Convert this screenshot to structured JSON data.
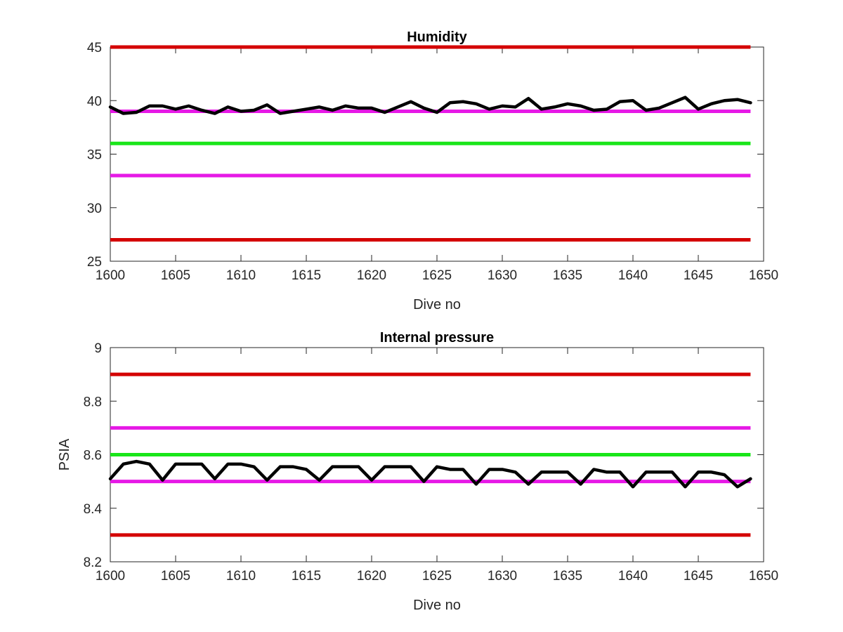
{
  "chart_data": [
    {
      "type": "line",
      "title": "Humidity",
      "xlabel": "Dive no",
      "ylabel": "",
      "xlim": [
        1600,
        1650
      ],
      "ylim": [
        25,
        45
      ],
      "xticks": [
        1600,
        1605,
        1610,
        1615,
        1620,
        1625,
        1630,
        1635,
        1640,
        1645,
        1650
      ],
      "yticks": [
        25,
        30,
        35,
        40,
        45
      ],
      "x_tick_labels": [
        "1600",
        "1605",
        "1610",
        "1615",
        "1620",
        "1625",
        "1630",
        "1635",
        "1640",
        "1645",
        "1650"
      ],
      "y_tick_labels": [
        "25",
        "30",
        "35",
        "40",
        "45"
      ],
      "grid": false,
      "reference_lines": [
        {
          "y": 45,
          "color": "#d40000"
        },
        {
          "y": 39,
          "color": "#e619e6"
        },
        {
          "y": 36,
          "color": "#19e619"
        },
        {
          "y": 33,
          "color": "#e619e6"
        },
        {
          "y": 27,
          "color": "#d40000"
        }
      ],
      "series": [
        {
          "color": "#000000",
          "x": [
            1600,
            1601,
            1602,
            1603,
            1604,
            1605,
            1606,
            1607,
            1608,
            1609,
            1610,
            1611,
            1612,
            1613,
            1614,
            1615,
            1616,
            1617,
            1618,
            1619,
            1620,
            1621,
            1622,
            1623,
            1624,
            1625,
            1626,
            1627,
            1628,
            1629,
            1630,
            1631,
            1632,
            1633,
            1634,
            1635,
            1636,
            1637,
            1638,
            1639,
            1640,
            1641,
            1642,
            1643,
            1644,
            1645,
            1646,
            1647,
            1648,
            1649
          ],
          "values": [
            39.4,
            38.8,
            38.9,
            39.5,
            39.5,
            39.2,
            39.5,
            39.1,
            38.8,
            39.4,
            39.0,
            39.1,
            39.6,
            38.8,
            39.0,
            39.2,
            39.4,
            39.1,
            39.5,
            39.3,
            39.3,
            38.9,
            39.4,
            39.9,
            39.3,
            38.9,
            39.8,
            39.9,
            39.7,
            39.2,
            39.5,
            39.4,
            40.2,
            39.2,
            39.4,
            39.7,
            39.5,
            39.1,
            39.2,
            39.9,
            40.0,
            39.1,
            39.3,
            39.8,
            40.3,
            39.2,
            39.7,
            40.0,
            40.1,
            39.8
          ]
        }
      ]
    },
    {
      "type": "line",
      "title": "Internal pressure",
      "xlabel": "Dive no",
      "ylabel": "PSIA",
      "xlim": [
        1600,
        1650
      ],
      "ylim": [
        8.2,
        9
      ],
      "xticks": [
        1600,
        1605,
        1610,
        1615,
        1620,
        1625,
        1630,
        1635,
        1640,
        1645,
        1650
      ],
      "yticks": [
        8.2,
        8.4,
        8.6,
        8.8,
        9
      ],
      "x_tick_labels": [
        "1600",
        "1605",
        "1610",
        "1615",
        "1620",
        "1625",
        "1630",
        "1635",
        "1640",
        "1645",
        "1650"
      ],
      "y_tick_labels": [
        "8.2",
        "8.4",
        "8.6",
        "8.8",
        "9"
      ],
      "grid": false,
      "reference_lines": [
        {
          "y": 8.9,
          "color": "#d40000"
        },
        {
          "y": 8.7,
          "color": "#e619e6"
        },
        {
          "y": 8.6,
          "color": "#19e619"
        },
        {
          "y": 8.5,
          "color": "#e619e6"
        },
        {
          "y": 8.3,
          "color": "#d40000"
        }
      ],
      "series": [
        {
          "color": "#000000",
          "x": [
            1600,
            1601,
            1602,
            1603,
            1604,
            1605,
            1606,
            1607,
            1608,
            1609,
            1610,
            1611,
            1612,
            1613,
            1614,
            1615,
            1616,
            1617,
            1618,
            1619,
            1620,
            1621,
            1622,
            1623,
            1624,
            1625,
            1626,
            1627,
            1628,
            1629,
            1630,
            1631,
            1632,
            1633,
            1634,
            1635,
            1636,
            1637,
            1638,
            1639,
            1640,
            1641,
            1642,
            1643,
            1644,
            1645,
            1646,
            1647,
            1648,
            1649
          ],
          "values": [
            8.51,
            8.565,
            8.575,
            8.565,
            8.505,
            8.565,
            8.565,
            8.565,
            8.51,
            8.565,
            8.565,
            8.555,
            8.505,
            8.555,
            8.555,
            8.545,
            8.505,
            8.555,
            8.555,
            8.555,
            8.505,
            8.555,
            8.555,
            8.555,
            8.5,
            8.555,
            8.545,
            8.545,
            8.49,
            8.545,
            8.545,
            8.535,
            8.49,
            8.535,
            8.535,
            8.535,
            8.49,
            8.545,
            8.535,
            8.535,
            8.48,
            8.535,
            8.535,
            8.535,
            8.48,
            8.535,
            8.535,
            8.525,
            8.48,
            8.51
          ]
        }
      ]
    }
  ]
}
